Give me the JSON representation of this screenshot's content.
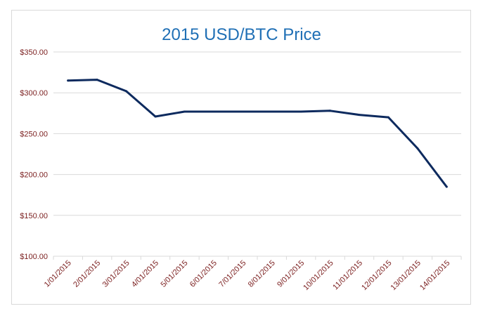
{
  "chart_data": {
    "type": "line",
    "title": "2015 USD/BTC Price",
    "xlabel": "",
    "ylabel": "",
    "categories": [
      "1/01/2015",
      "2/01/2015",
      "3/01/2015",
      "4/01/2015",
      "5/01/2015",
      "6/01/2015",
      "7/01/2015",
      "8/01/2015",
      "9/01/2015",
      "10/01/2015",
      "11/01/2015",
      "12/01/2015",
      "13/01/2015",
      "14/01/2015"
    ],
    "y_tick_labels": [
      "$100.00",
      "$150.00",
      "$200.00",
      "$250.00",
      "$300.00",
      "$350.00"
    ],
    "y_ticks": [
      100,
      150,
      200,
      250,
      300,
      350
    ],
    "ylim": [
      100,
      350
    ],
    "grid": true,
    "series": [
      {
        "values": [
          315,
          316,
          302,
          271,
          277,
          277,
          277,
          277,
          277,
          278,
          273,
          270,
          232,
          185
        ]
      }
    ],
    "colors": {
      "line": "#0d2a5e",
      "grid": "#d9d9d9",
      "axis": "#d9d9d9",
      "tick_text": "#7b1f1f",
      "title": "#1f6fb5"
    }
  }
}
